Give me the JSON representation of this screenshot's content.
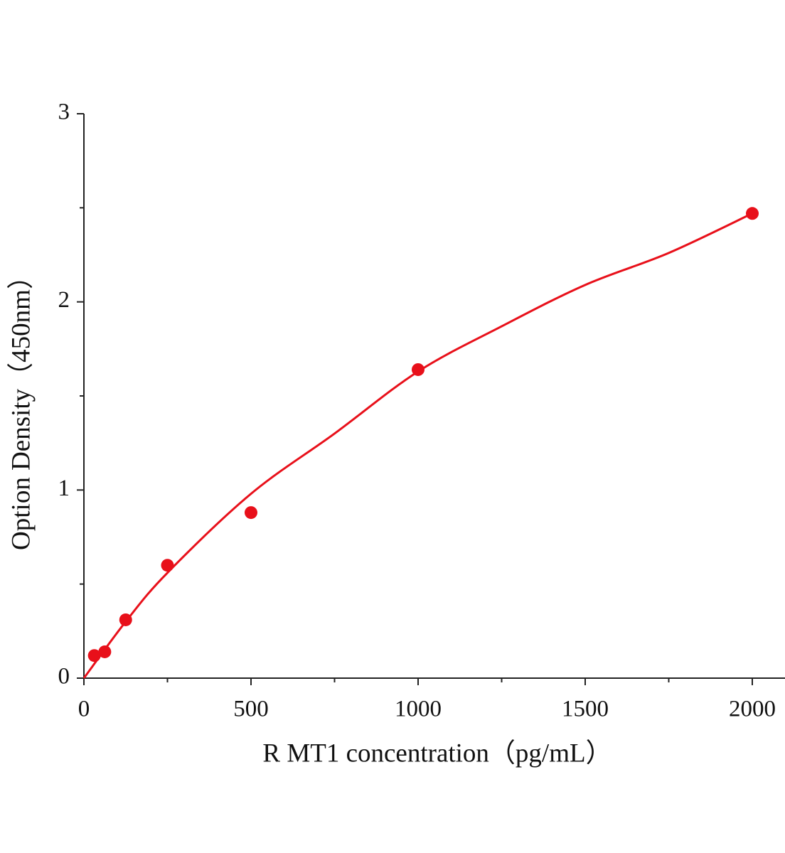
{
  "chart_data": {
    "type": "scatter",
    "x_label": "R MT1  concentration（pg/mL）",
    "y_label": "Option Density（450nm）",
    "xlim": [
      0,
      2100
    ],
    "ylim": [
      0,
      3
    ],
    "xticks": [
      0,
      500,
      1000,
      1500,
      2000
    ],
    "yticks": [
      0,
      1,
      2,
      3
    ],
    "xminorticks": [
      250,
      750,
      1250,
      1750
    ],
    "yminorticks": [
      0.5,
      1.5,
      2.5
    ],
    "grid": false,
    "series": [
      {
        "type": "scatter",
        "color": "#e8101a",
        "x": [
          31.25,
          62.5,
          125,
          250,
          500,
          1000,
          2000
        ],
        "values": [
          0.12,
          0.14,
          0.31,
          0.6,
          0.88,
          1.64,
          2.47
        ]
      },
      {
        "type": "line",
        "color": "#e8101a",
        "x": [
          0,
          125,
          250,
          500,
          750,
          1000,
          1250,
          1500,
          1750,
          2000
        ],
        "values": [
          0,
          0.3,
          0.56,
          0.98,
          1.3,
          1.63,
          1.87,
          2.09,
          2.26,
          2.47
        ]
      }
    ]
  }
}
